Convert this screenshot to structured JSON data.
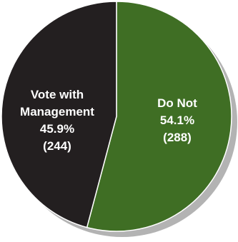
{
  "chart_data": {
    "type": "pie",
    "title": "",
    "slices": [
      {
        "name": "Do Not",
        "percent_label": "54.1%",
        "count_label": "(288)",
        "value": 288,
        "percent": 54.1,
        "color": "#3f6e24"
      },
      {
        "name_lines": [
          "Vote with",
          "Management"
        ],
        "percent_label": "45.9%",
        "count_label": "(244)",
        "value": 244,
        "percent": 45.9,
        "color": "#231f20"
      }
    ],
    "shadow_color": "#b3b3b3",
    "edge_color": "#ffffff",
    "legend": "none"
  }
}
